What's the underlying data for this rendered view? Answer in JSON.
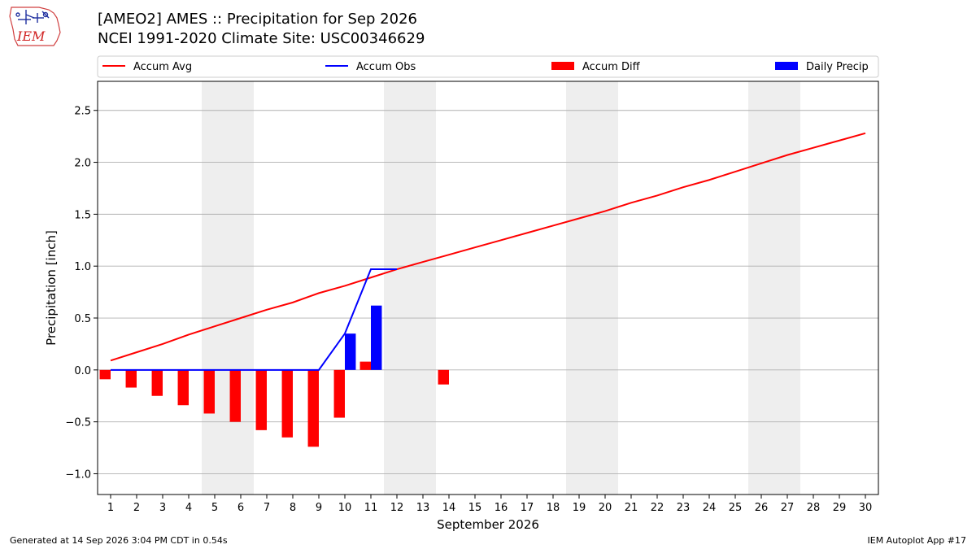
{
  "header": {
    "logo_text": "IEM",
    "title_line1": "[AMEO2] AMES :: Precipitation for Sep 2026",
    "title_line2": "NCEI 1991-2020 Climate Site: USC00346629"
  },
  "footer": {
    "left": "Generated at 14 Sep 2026 3:04 PM CDT in 0.54s",
    "right": "IEM Autoplot App #17"
  },
  "colors": {
    "avg": "#ff0000",
    "obs": "#0000ff",
    "diff": "#ff0000",
    "daily": "#0000ff",
    "weekend": "#eeeeee",
    "grid": "#b0b0b0"
  },
  "chart_data": {
    "type": "bar",
    "xlabel": "September 2026",
    "ylabel": "Precipitation [inch]",
    "ylim": [
      -1.2,
      2.78
    ],
    "xlim": [
      0.5,
      30.5
    ],
    "grid": "horizontal",
    "legend_placement": "top",
    "x": [
      1,
      2,
      3,
      4,
      5,
      6,
      7,
      8,
      9,
      10,
      11,
      12,
      13,
      14,
      15,
      16,
      17,
      18,
      19,
      20,
      21,
      22,
      23,
      24,
      25,
      26,
      27,
      28,
      29,
      30
    ],
    "x_ticks": [
      1,
      2,
      3,
      4,
      5,
      6,
      7,
      8,
      9,
      10,
      11,
      12,
      13,
      14,
      15,
      16,
      17,
      18,
      19,
      20,
      21,
      22,
      23,
      24,
      25,
      26,
      27,
      28,
      29,
      30
    ],
    "y_ticks": [
      -1.0,
      -0.5,
      0.0,
      0.5,
      1.0,
      1.5,
      2.0,
      2.5
    ],
    "y_tick_labels": [
      "−1.0",
      "−0.5",
      "0.0",
      "0.5",
      "1.0",
      "1.5",
      "2.0",
      "2.5"
    ],
    "weekend_bands": [
      [
        4.5,
        6.5
      ],
      [
        11.5,
        13.5
      ],
      [
        18.5,
        20.5
      ],
      [
        25.5,
        27.5
      ]
    ],
    "series": [
      {
        "name": "Accum Avg",
        "type": "line",
        "x": [
          1,
          2,
          3,
          4,
          5,
          6,
          7,
          8,
          9,
          10,
          11,
          12,
          13,
          14,
          15,
          16,
          17,
          18,
          19,
          20,
          21,
          22,
          23,
          24,
          25,
          26,
          27,
          28,
          29,
          30
        ],
        "values": [
          0.09,
          0.17,
          0.25,
          0.34,
          0.42,
          0.5,
          0.58,
          0.65,
          0.74,
          0.81,
          0.89,
          0.97,
          1.04,
          1.11,
          1.18,
          1.25,
          1.32,
          1.39,
          1.46,
          1.53,
          1.61,
          1.68,
          1.76,
          1.83,
          1.91,
          1.99,
          2.07,
          2.14,
          2.21,
          2.28
        ]
      },
      {
        "name": "Accum Obs",
        "type": "line",
        "x": [
          1,
          2,
          3,
          4,
          5,
          6,
          7,
          8,
          9,
          10,
          11,
          12
        ],
        "values": [
          0,
          0,
          0,
          0,
          0,
          0,
          0,
          0,
          0,
          0.35,
          0.97,
          0.97
        ]
      },
      {
        "name": "Accum Diff",
        "type": "bar",
        "x": [
          1,
          2,
          3,
          4,
          5,
          6,
          7,
          8,
          9,
          10,
          11,
          14
        ],
        "values": [
          -0.09,
          -0.17,
          -0.25,
          -0.34,
          -0.42,
          -0.5,
          -0.58,
          -0.65,
          -0.74,
          -0.46,
          0.08,
          -0.14
        ]
      },
      {
        "name": "Daily Precip",
        "type": "bar",
        "x": [
          10,
          11
        ],
        "values": [
          0.35,
          0.62
        ]
      }
    ]
  }
}
